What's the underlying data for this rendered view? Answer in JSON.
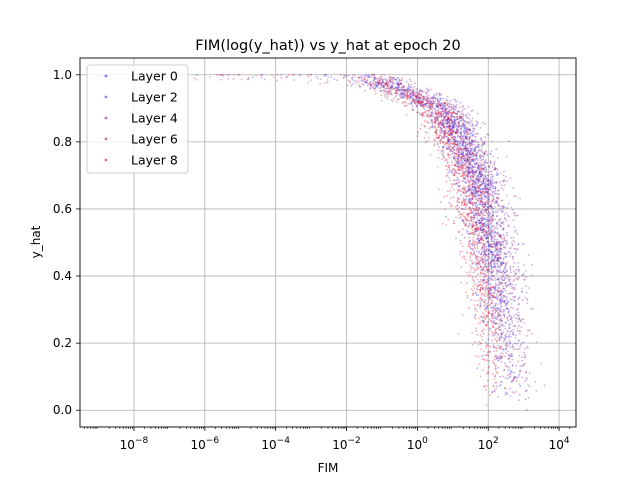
{
  "chart_data": {
    "type": "scatter",
    "title": "FIM(log(y_hat)) vs y_hat at epoch 20",
    "xlabel": "FIM",
    "ylabel": "y_hat",
    "xscale": "log",
    "xlim": [
      3e-10,
      30000.0
    ],
    "ylim": [
      -0.05,
      1.05
    ],
    "grid": true,
    "legend_position": "upper-left",
    "x_ticks": [
      {
        "value": 1e-08,
        "base": "10",
        "exp": "−8"
      },
      {
        "value": 1e-06,
        "base": "10",
        "exp": "−6"
      },
      {
        "value": 0.0001,
        "base": "10",
        "exp": "−4"
      },
      {
        "value": 0.01,
        "base": "10",
        "exp": "−2"
      },
      {
        "value": 1,
        "base": "10",
        "exp": "0"
      },
      {
        "value": 100,
        "base": "10",
        "exp": "2"
      },
      {
        "value": 10000,
        "base": "10",
        "exp": "4"
      }
    ],
    "y_ticks": [
      {
        "value": 0.0,
        "label": "0.0"
      },
      {
        "value": 0.2,
        "label": "0.2"
      },
      {
        "value": 0.4,
        "label": "0.4"
      },
      {
        "value": 0.6,
        "label": "0.6"
      },
      {
        "value": 0.8,
        "label": "0.8"
      },
      {
        "value": 1.0,
        "label": "1.0"
      }
    ],
    "series": [
      {
        "name": "Layer 0",
        "color": "#1f1fff",
        "opacity": 0.35,
        "center_log10_fim_at_half": 2.0,
        "curves": [
          {
            "y": 1.0,
            "x": 1e-06
          },
          {
            "y": 0.99,
            "x": 0.05
          },
          {
            "y": 0.9,
            "x": 5
          },
          {
            "y": 0.7,
            "x": 40
          },
          {
            "y": 0.5,
            "x": 100
          },
          {
            "y": 0.3,
            "x": 180
          },
          {
            "y": 0.1,
            "x": 300
          },
          {
            "y": 0.0,
            "x": 400
          }
        ]
      },
      {
        "name": "Layer 2",
        "color": "#4b2fd9",
        "opacity": 0.35,
        "center_log10_fim_at_half": 2.1,
        "curves": [
          {
            "y": 1.0,
            "x": 1e-06
          },
          {
            "y": 0.99,
            "x": 0.05
          },
          {
            "y": 0.9,
            "x": 6
          },
          {
            "y": 0.7,
            "x": 50
          },
          {
            "y": 0.5,
            "x": 130
          },
          {
            "y": 0.3,
            "x": 230
          },
          {
            "y": 0.1,
            "x": 400
          },
          {
            "y": 0.0,
            "x": 500
          }
        ]
      },
      {
        "name": "Layer 4",
        "color": "#8a1f8a",
        "opacity": 0.35,
        "center_log10_fim_at_half": 2.4,
        "curves": [
          {
            "y": 1.0,
            "x": 1e-06
          },
          {
            "y": 0.99,
            "x": 0.08
          },
          {
            "y": 0.9,
            "x": 10
          },
          {
            "y": 0.7,
            "x": 90
          },
          {
            "y": 0.5,
            "x": 250
          },
          {
            "y": 0.3,
            "x": 500
          },
          {
            "y": 0.1,
            "x": 900
          },
          {
            "y": 0.0,
            "x": 1200
          }
        ]
      },
      {
        "name": "Layer 6",
        "color": "#b0104f",
        "opacity": 0.35,
        "center_log10_fim_at_half": 1.9,
        "curves": [
          {
            "y": 1.0,
            "x": 1e-06
          },
          {
            "y": 0.99,
            "x": 0.04
          },
          {
            "y": 0.9,
            "x": 4
          },
          {
            "y": 0.7,
            "x": 30
          },
          {
            "y": 0.5,
            "x": 80
          },
          {
            "y": 0.3,
            "x": 140
          },
          {
            "y": 0.1,
            "x": 230
          },
          {
            "y": 0.0,
            "x": 300
          }
        ]
      },
      {
        "name": "Layer 8",
        "color": "#e8102a",
        "opacity": 0.35,
        "center_log10_fim_at_half": 1.7,
        "curves": [
          {
            "y": 1.0,
            "x": 1e-06
          },
          {
            "y": 0.99,
            "x": 0.03
          },
          {
            "y": 0.9,
            "x": 3
          },
          {
            "y": 0.7,
            "x": 20
          },
          {
            "y": 0.5,
            "x": 50
          },
          {
            "y": 0.3,
            "x": 90
          },
          {
            "y": 0.1,
            "x": 150
          },
          {
            "y": 0.0,
            "x": 200
          }
        ]
      }
    ]
  }
}
